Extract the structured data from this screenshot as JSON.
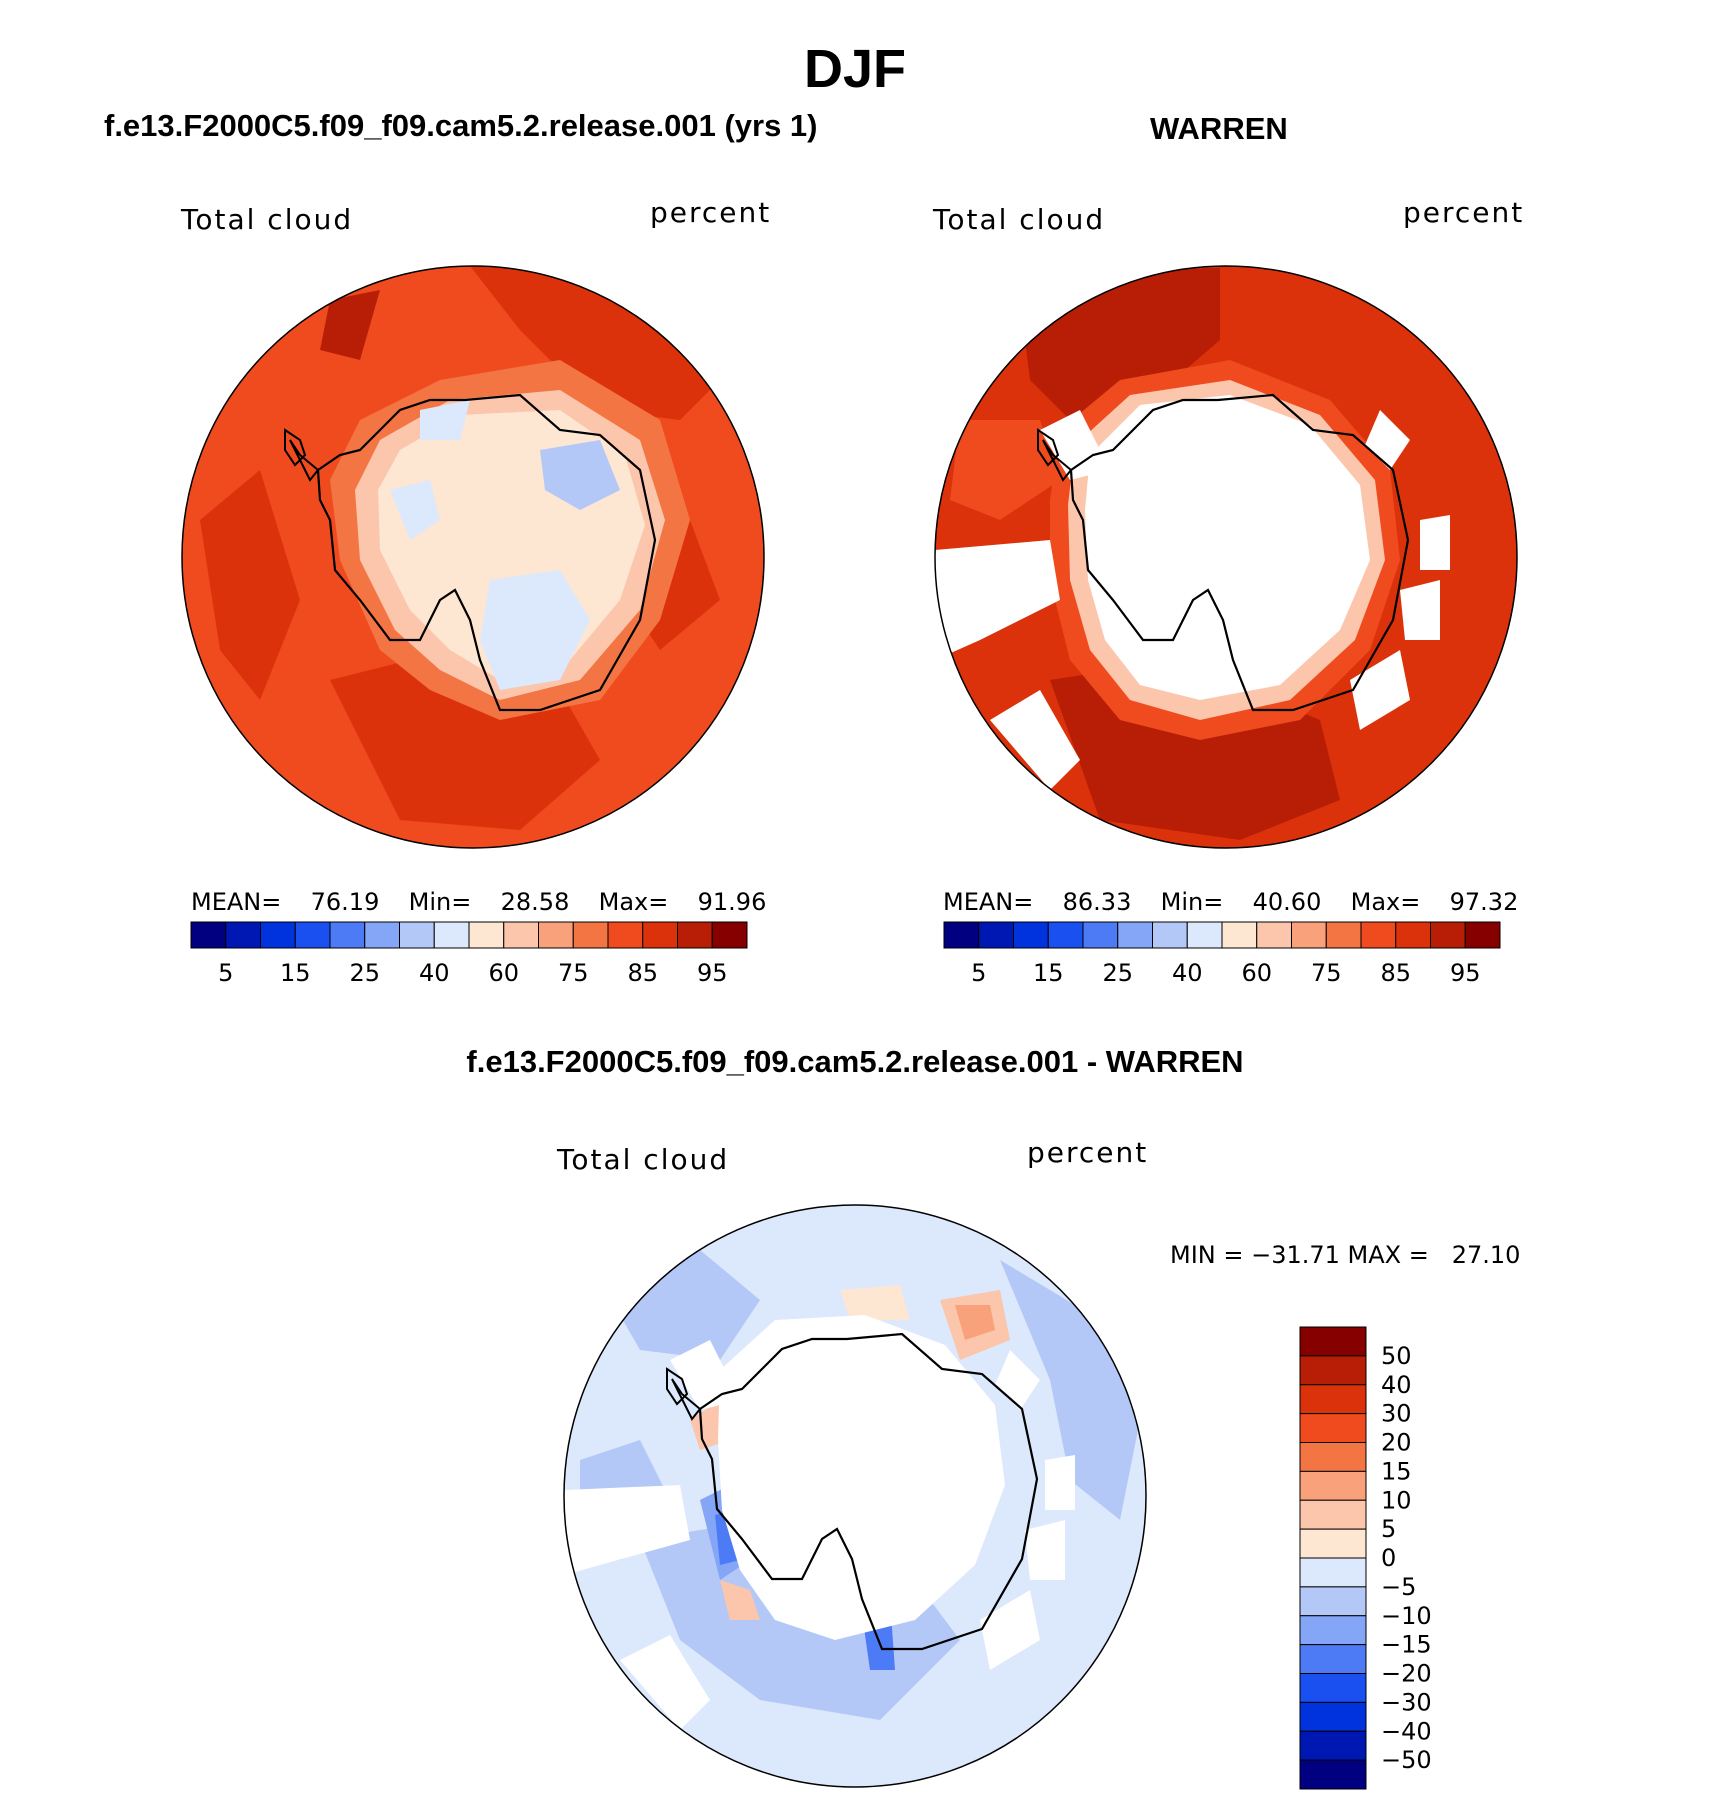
{
  "chart_data": [
    {
      "type": "heatmap",
      "season": "DJF",
      "title": "f.e13.F2000C5.f09_f09.cam5.2.release.001 (yrs 1)",
      "left_label": "Total cloud",
      "right_label": "percent",
      "mean_label": "MEAN=",
      "mean": "76.19",
      "min_label": "Min=",
      "min": "28.58",
      "max_label": "Max=",
      "max": "91.96",
      "colorbar_ticks": [
        "5",
        "15",
        "25",
        "40",
        "60",
        "75",
        "85",
        "95"
      ],
      "colorbar_colors": [
        "#000080",
        "#0018b3",
        "#0033dd",
        "#1a50f0",
        "#4d7af5",
        "#85a6f7",
        "#b3c8f7",
        "#dce8fb",
        "#fde6d2",
        "#fbc6ab",
        "#f9a17a",
        "#f47544",
        "#ef4b1f",
        "#dc320b",
        "#b81e06",
        "#860000"
      ]
    },
    {
      "type": "heatmap",
      "title": "WARREN",
      "left_label": "Total cloud",
      "right_label": "percent",
      "mean_label": "MEAN=",
      "mean": "86.33",
      "min_label": "Min=",
      "min": "40.60",
      "max_label": "Max=",
      "max": "97.32",
      "colorbar_ticks": [
        "5",
        "15",
        "25",
        "40",
        "60",
        "75",
        "85",
        "95"
      ],
      "colorbar_colors": [
        "#000080",
        "#0018b3",
        "#0033dd",
        "#1a50f0",
        "#4d7af5",
        "#85a6f7",
        "#b3c8f7",
        "#dce8fb",
        "#fde6d2",
        "#fbc6ab",
        "#f9a17a",
        "#f47544",
        "#ef4b1f",
        "#dc320b",
        "#b81e06",
        "#860000"
      ]
    },
    {
      "type": "heatmap",
      "title": "f.e13.F2000C5.f09_f09.cam5.2.release.001 - WARREN",
      "left_label": "Total cloud",
      "right_label": "percent",
      "minmax_text": "MIN = −31.71 MAX =   27.10",
      "colorbar_ticks": [
        "50",
        "40",
        "30",
        "20",
        "15",
        "10",
        "5",
        "0",
        "−5",
        "−10",
        "−15",
        "−20",
        "−30",
        "−40",
        "−50"
      ],
      "colorbar_colors": [
        "#860000",
        "#b81e06",
        "#dc320b",
        "#ef4b1f",
        "#f47544",
        "#f9a17a",
        "#fbc6ab",
        "#fde6d2",
        "#dce8fb",
        "#b3c8f7",
        "#85a6f7",
        "#4d7af5",
        "#1a50f0",
        "#0033dd",
        "#0018b3",
        "#000080"
      ]
    }
  ]
}
